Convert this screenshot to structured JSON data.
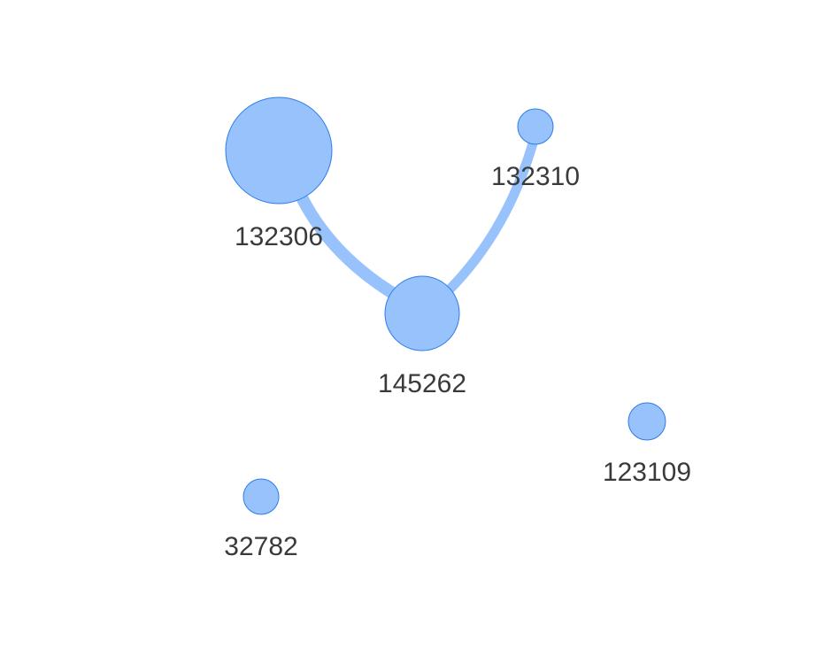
{
  "colors": {
    "node_fill": "#97c2fc",
    "node_border": "#2b7ce9",
    "edge": "#97c2fc",
    "label": "#3a3a3a",
    "background": "#ffffff"
  },
  "graph": {
    "nodes": [
      {
        "id": "132306",
        "label": "132306"
      },
      {
        "id": "132310",
        "label": "132310"
      },
      {
        "id": "145262",
        "label": "145262"
      },
      {
        "id": "123109",
        "label": "123109"
      },
      {
        "id": "32782",
        "label": "32782"
      }
    ],
    "edges": [
      {
        "from": "132306",
        "to": "145262"
      },
      {
        "from": "145262",
        "to": "132310"
      }
    ]
  }
}
